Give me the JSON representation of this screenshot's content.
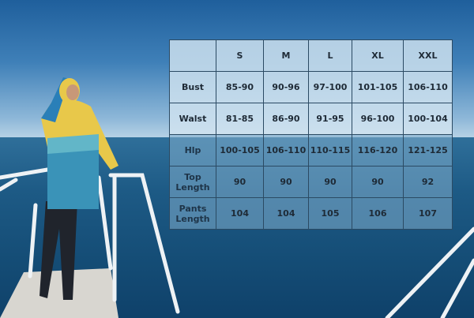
{
  "size_chart": {
    "sizes": [
      "S",
      "M",
      "L",
      "XL",
      "XXL"
    ],
    "rows": [
      {
        "label": "Bust",
        "values": [
          "85-90",
          "90-96",
          "97-100",
          "101-105",
          "106-110"
        ]
      },
      {
        "label": "Walst",
        "values": [
          "81-85",
          "86-90",
          "91-95",
          "96-100",
          "100-104"
        ]
      },
      {
        "label": "Hlp",
        "values": [
          "100-105",
          "106-110",
          "110-115",
          "116-120",
          "121-125"
        ]
      },
      {
        "label": "Top Length",
        "values": [
          "90",
          "90",
          "90",
          "90",
          "92"
        ]
      },
      {
        "label": "Pants Length",
        "values": [
          "104",
          "104",
          "105",
          "106",
          "107"
        ]
      }
    ],
    "colors": {
      "size_header": "#1d6aa0",
      "grid": "#2b4a63",
      "text": "#1e2a36"
    }
  }
}
